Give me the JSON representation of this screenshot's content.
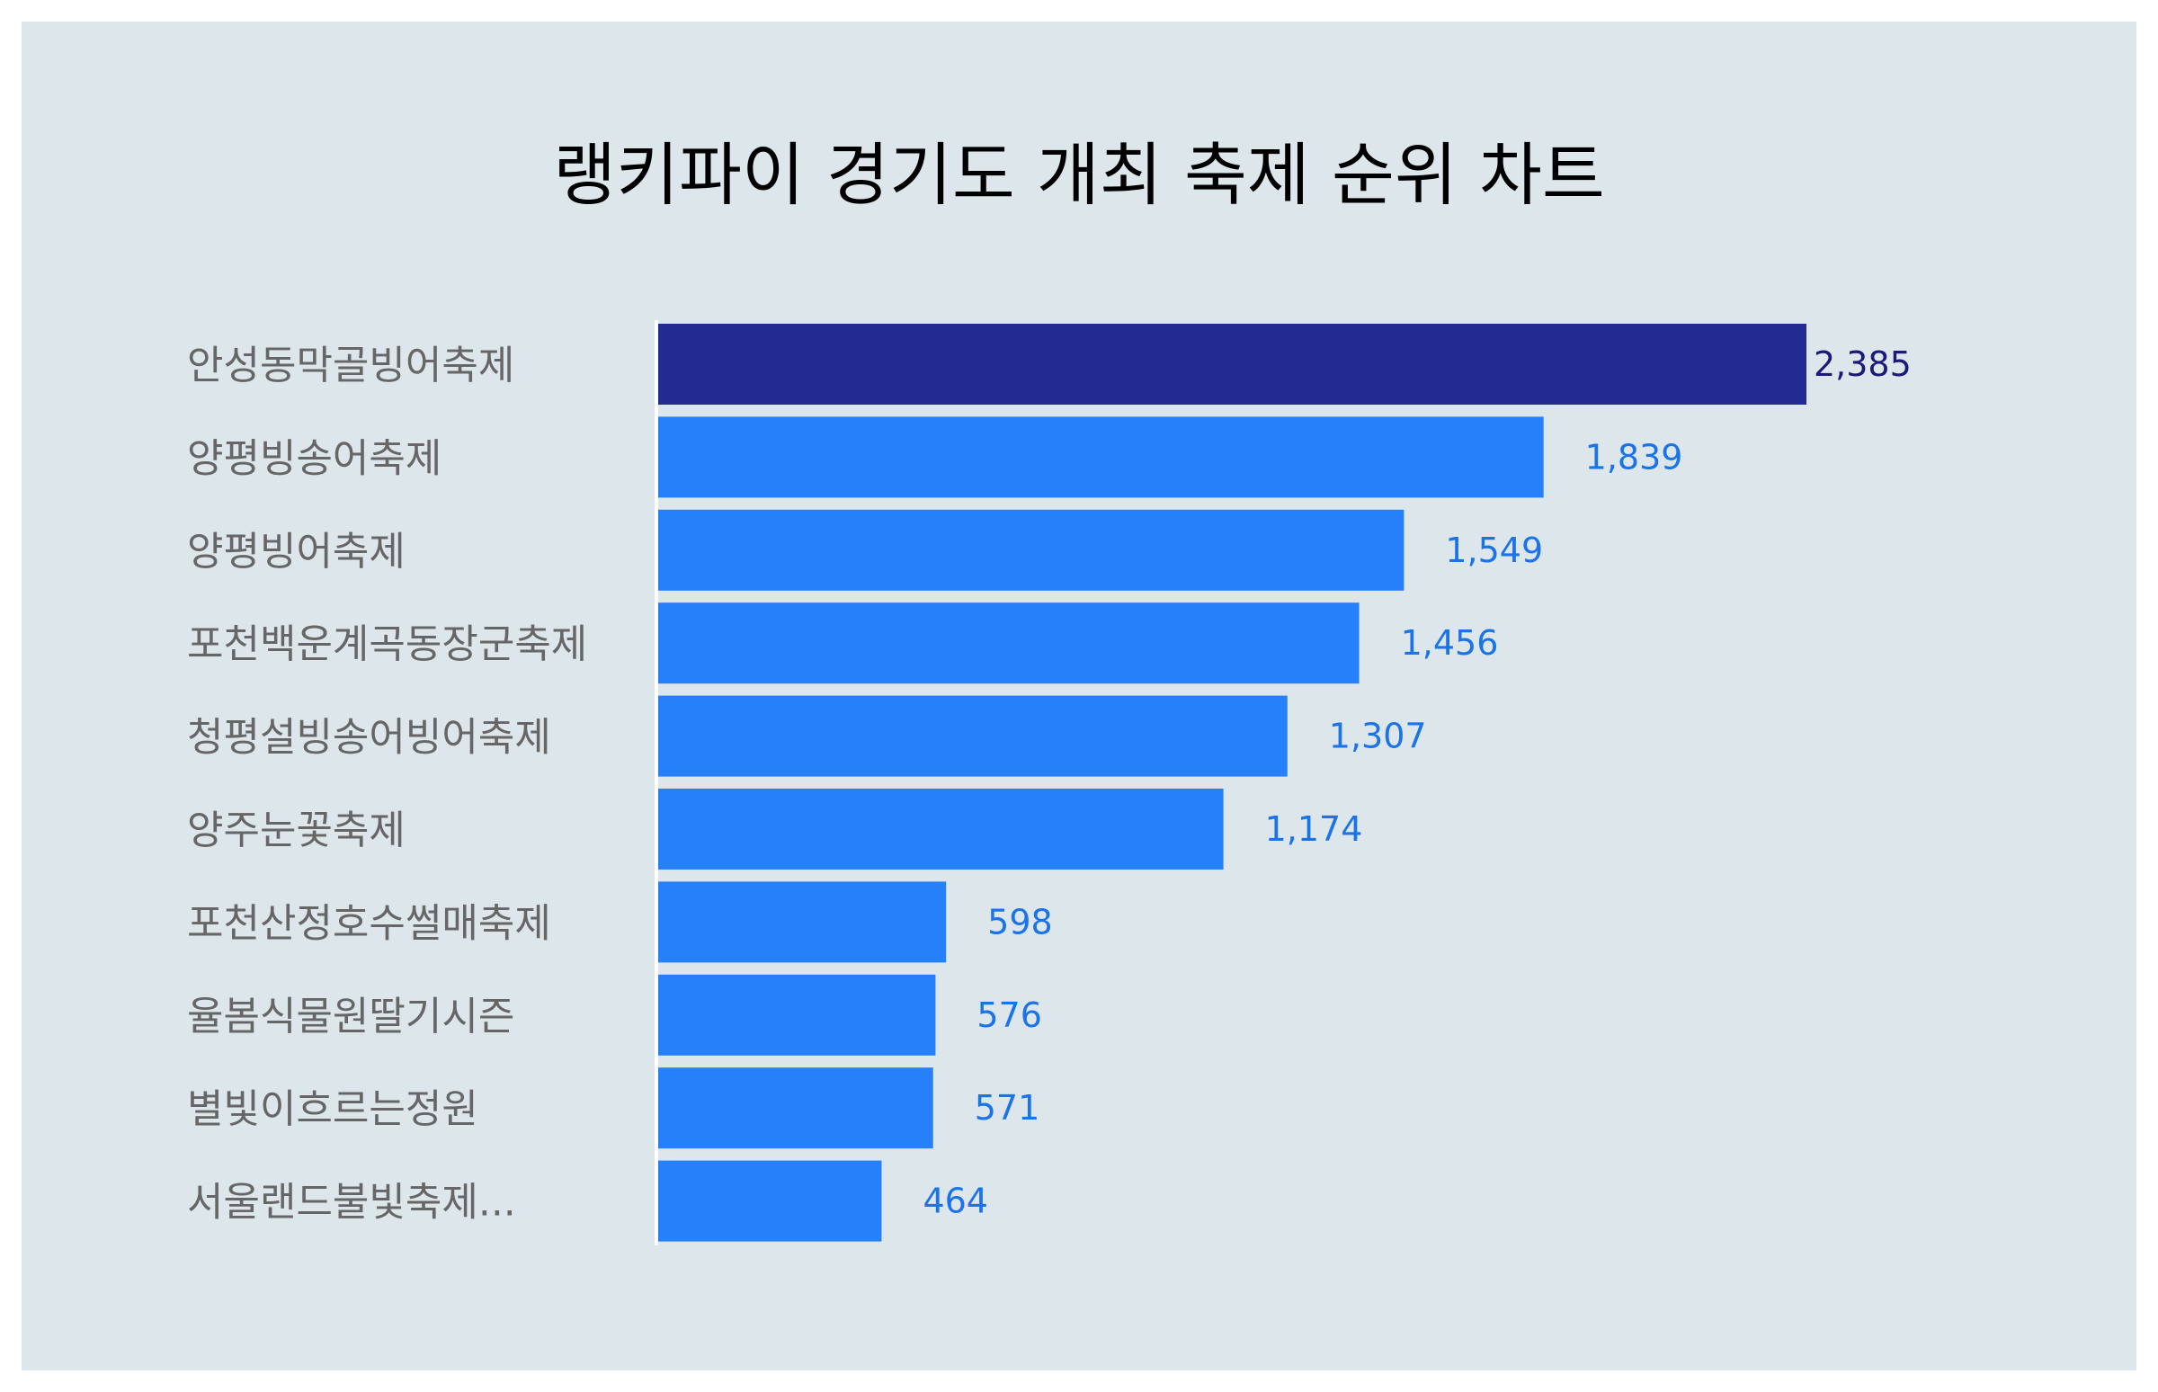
{
  "chart_data": {
    "type": "bar",
    "orientation": "horizontal",
    "title": "랭키파이 경기도 개최 축제 순위 차트",
    "categories": [
      "안성동막골빙어축제",
      "양평빙송어축제",
      "양평빙어축제",
      "포천백운계곡동장군축제",
      "청평설빙송어빙어축제",
      "양주눈꽃축제",
      "포천산정호수썰매축제",
      "율봄식물원딸기시즌",
      "별빛이흐르는정원",
      "서울랜드불빛축제..."
    ],
    "values": [
      2385,
      1839,
      1549,
      1456,
      1307,
      1174,
      598,
      576,
      571,
      464
    ],
    "value_labels": [
      "2,385",
      "1,839",
      "1,549",
      "1,456",
      "1,307",
      "1,174",
      "598",
      "576",
      "571",
      "464"
    ],
    "xlim": [
      0,
      2385
    ],
    "grid": false,
    "legend": "none",
    "colors": {
      "highlight_bar": "#222b8f",
      "bar": "#2680fa",
      "highlight_label": "#1a1a7a",
      "label": "#1a73e8",
      "category_text": "#666666",
      "background": "#dce6eb",
      "axis_line": "#ffffff"
    }
  }
}
